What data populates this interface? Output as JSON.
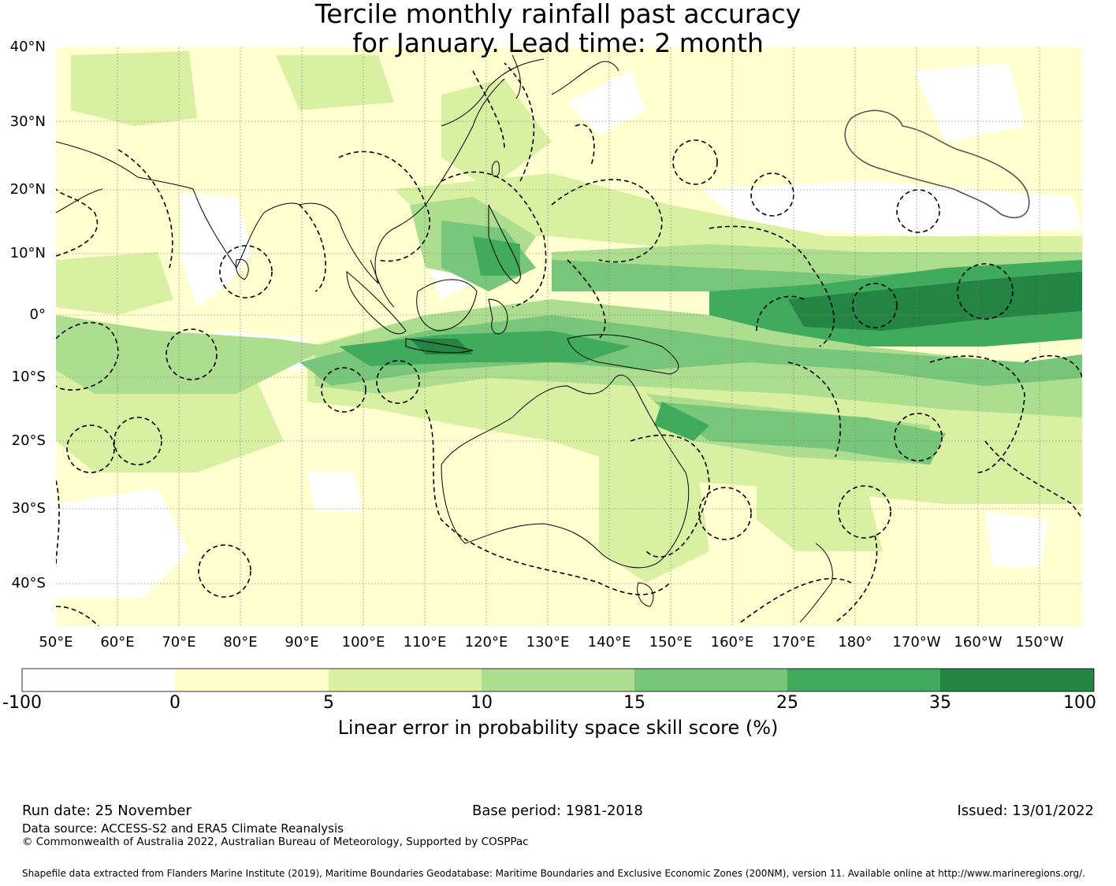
{
  "title": {
    "line1": "Tercile monthly rainfall past accuracy",
    "line2": "for January. Lead time: 2 month"
  },
  "map": {
    "lat_labels": [
      "40°N",
      "30°N",
      "20°N",
      "10°N",
      "0°",
      "10°S",
      "20°S",
      "30°S",
      "40°S"
    ],
    "lon_labels": [
      "50°E",
      "60°E",
      "70°E",
      "80°E",
      "90°E",
      "100°E",
      "110°E",
      "120°E",
      "130°E",
      "140°E",
      "150°E",
      "160°E",
      "170°E",
      "180°",
      "170°W",
      "160°W",
      "150°W"
    ],
    "extent": {
      "lon_min": 50,
      "lon_max": 217,
      "lat_min": -45,
      "lat_max": 40
    },
    "colors": {
      "ocean_dominant": "#ffffd0",
      "grid": "#7f7f7f",
      "coast": "#000000",
      "eez": "#000000"
    }
  },
  "colorbar": {
    "bins": [
      {
        "from": -100,
        "to": 0,
        "color": "#ffffff"
      },
      {
        "from": 0,
        "to": 5,
        "color": "#ffffcc"
      },
      {
        "from": 5,
        "to": 10,
        "color": "#d9f0a3"
      },
      {
        "from": 10,
        "to": 15,
        "color": "#addd8e"
      },
      {
        "from": 15,
        "to": 25,
        "color": "#78c679"
      },
      {
        "from": 25,
        "to": 35,
        "color": "#41ab5d"
      },
      {
        "from": 35,
        "to": 100,
        "color": "#238443"
      }
    ],
    "tick_labels": [
      "-100",
      "0",
      "5",
      "10",
      "15",
      "25",
      "35",
      "100"
    ],
    "label": "Linear error in probability space skill score (%)"
  },
  "footer": {
    "run_date": "Run date: 25 November",
    "base_period": "Base period: 1981-2018",
    "issued": "Issued: 13/01/2022",
    "data_source": "Data source: ACCESS-S2 and ERA5 Climate Reanalysis",
    "copyright": "© Commonwealth of Australia 2022, Australian Bureau of Meteorology, Supported by COSPPac",
    "shapefile": "Shapefile data extracted from Flanders Marine Institute (2019), Maritime Boundaries Geodatabase: Maritime Boundaries and Exclusive Economic Zones (200NM), version 11. Available online at http://www.marineregions.org/."
  }
}
